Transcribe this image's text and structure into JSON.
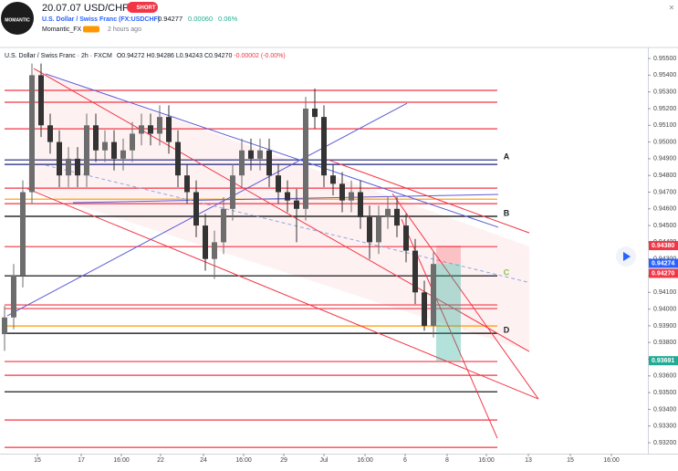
{
  "header": {
    "logo": "MOMANTIC",
    "title": "20.07.07 USD/CHF",
    "badge": "SHORT",
    "symbol": "U.S. Dollar / Swiss Franc (FX:USDCHF)",
    "price": "0.94277",
    "change": "0.00060",
    "change_pct": "0.06%",
    "author": "Momantic_FX",
    "time": "2 hours ago"
  },
  "chart_data": {
    "type": "candlestick",
    "legend": {
      "name": "U.S. Dollar / Swiss Franc · 2h · FXCM",
      "open": "O0.94272",
      "high": "H0.94286",
      "low": "L0.94243",
      "close": "C0.94270",
      "change": "-0.00002 (-0.00%)"
    },
    "up_color": "#6d6d6d",
    "down_color": "#333333",
    "x": [
      0,
      1,
      2,
      3,
      4,
      5,
      6,
      7,
      8,
      9,
      10,
      11,
      12,
      13,
      14,
      15,
      16,
      17,
      18,
      19,
      20,
      21,
      22,
      23,
      24,
      25,
      26,
      27,
      28,
      29,
      30,
      31,
      32,
      33,
      34,
      35,
      36,
      37,
      38,
      39,
      40,
      41,
      42,
      43,
      44,
      45,
      46,
      47
    ],
    "open": [
      0.9385,
      0.9395,
      0.942,
      0.947,
      0.954,
      0.951,
      0.95,
      0.948,
      0.949,
      0.948,
      0.951,
      0.9495,
      0.95,
      0.949,
      0.9495,
      0.9505,
      0.951,
      0.9505,
      0.9515,
      0.95,
      0.948,
      0.947,
      0.945,
      0.943,
      0.944,
      0.946,
      0.948,
      0.9495,
      0.949,
      0.9495,
      0.948,
      0.947,
      0.9465,
      0.946,
      0.952,
      0.9515,
      0.948,
      0.9475,
      0.9465,
      0.947,
      0.9455,
      0.944,
      0.9455,
      0.946,
      0.945,
      0.9435,
      0.941,
      0.939
    ],
    "high": [
      0.9402,
      0.9427,
      0.9477,
      0.9547,
      0.9547,
      0.9517,
      0.9507,
      0.9497,
      0.9497,
      0.9517,
      0.9517,
      0.9507,
      0.9507,
      0.9502,
      0.9512,
      0.9517,
      0.9517,
      0.9522,
      0.9522,
      0.9507,
      0.9487,
      0.9477,
      0.9457,
      0.9447,
      0.9467,
      0.9487,
      0.9502,
      0.9502,
      0.9502,
      0.9502,
      0.9487,
      0.9477,
      0.9472,
      0.9527,
      0.9532,
      0.9522,
      0.9487,
      0.9482,
      0.9477,
      0.9477,
      0.9462,
      0.9462,
      0.9467,
      0.9467,
      0.9457,
      0.9442,
      0.9417,
      0.9434
    ],
    "low": [
      0.9375,
      0.9388,
      0.9413,
      0.9463,
      0.9503,
      0.9493,
      0.9473,
      0.9473,
      0.9473,
      0.9473,
      0.9488,
      0.9488,
      0.9483,
      0.9483,
      0.9488,
      0.9498,
      0.9498,
      0.9498,
      0.9493,
      0.9473,
      0.9463,
      0.9443,
      0.9423,
      0.9418,
      0.9433,
      0.9453,
      0.9473,
      0.9483,
      0.9483,
      0.9473,
      0.9463,
      0.9458,
      0.944,
      0.9453,
      0.9508,
      0.9473,
      0.9468,
      0.9458,
      0.9458,
      0.9448,
      0.943,
      0.9433,
      0.9448,
      0.9443,
      0.9428,
      0.9403,
      0.9387,
      0.9383
    ],
    "close": [
      0.9395,
      0.942,
      0.947,
      0.954,
      0.951,
      0.95,
      0.948,
      0.949,
      0.948,
      0.951,
      0.9495,
      0.95,
      0.949,
      0.9495,
      0.9505,
      0.951,
      0.9505,
      0.9515,
      0.95,
      0.948,
      0.947,
      0.945,
      0.943,
      0.944,
      0.946,
      0.948,
      0.9495,
      0.949,
      0.9495,
      0.948,
      0.947,
      0.9465,
      0.946,
      0.952,
      0.9515,
      0.948,
      0.9475,
      0.9465,
      0.947,
      0.9455,
      0.944,
      0.9455,
      0.946,
      0.945,
      0.9435,
      0.941,
      0.939,
      0.9427
    ],
    "xlim": [
      -0.5,
      70.5
    ],
    "xticks": [
      {
        "value": 3.6,
        "label": "15"
      },
      {
        "value": 8.4,
        "label": "17"
      },
      {
        "value": 12.8,
        "label": "16:00"
      },
      {
        "value": 17.1,
        "label": "22"
      },
      {
        "value": 21.8,
        "label": "24"
      },
      {
        "value": 26.2,
        "label": "16:00"
      },
      {
        "value": 30.6,
        "label": "29"
      },
      {
        "value": 35,
        "label": "Jul"
      },
      {
        "value": 39.5,
        "label": "16:00"
      },
      {
        "value": 43.9,
        "label": "6"
      },
      {
        "value": 48.5,
        "label": "8"
      },
      {
        "value": 52.8,
        "label": "16:00"
      },
      {
        "value": 57.4,
        "label": "13"
      },
      {
        "value": 62,
        "label": "15"
      },
      {
        "value": 66.5,
        "label": "16:00"
      }
    ],
    "ylim": [
      0.93151,
      0.95566
    ],
    "yticks": [
      {
        "value": 0.932,
        "label": "0.93200"
      },
      {
        "value": 0.933,
        "label": "0.93300"
      },
      {
        "value": 0.934,
        "label": "0.93400"
      },
      {
        "value": 0.935,
        "label": "0.93500"
      },
      {
        "value": 0.936,
        "label": "0.93600"
      },
      {
        "value": 0.937,
        "label": "0.93700"
      },
      {
        "value": 0.938,
        "label": "0.93800"
      },
      {
        "value": 0.939,
        "label": "0.93900"
      },
      {
        "value": 0.94,
        "label": "0.94000"
      },
      {
        "value": 0.941,
        "label": "0.94100"
      },
      {
        "value": 0.942,
        "label": "0.94200"
      },
      {
        "value": 0.943,
        "label": "0.94300"
      },
      {
        "value": 0.944,
        "label": "0.94400"
      },
      {
        "value": 0.945,
        "label": "0.94500"
      },
      {
        "value": 0.946,
        "label": "0.94600"
      },
      {
        "value": 0.947,
        "label": "0.94700"
      },
      {
        "value": 0.948,
        "label": "0.94800"
      },
      {
        "value": 0.949,
        "label": "0.94900"
      },
      {
        "value": 0.95,
        "label": "0.95000"
      },
      {
        "value": 0.951,
        "label": "0.95100"
      },
      {
        "value": 0.952,
        "label": "0.95200"
      },
      {
        "value": 0.953,
        "label": "0.95300"
      },
      {
        "value": 0.954,
        "label": "0.95400"
      },
      {
        "value": 0.955,
        "label": "0.95500"
      }
    ],
    "levels": [
      {
        "value": 0.95309,
        "color": "#f23645"
      },
      {
        "value": 0.95238,
        "color": "#f23645"
      },
      {
        "value": 0.95079,
        "color": "#f23645"
      },
      {
        "value": 0.94893,
        "color": "#1a237e",
        "label": "A",
        "label_color": "#222222"
      },
      {
        "value": 0.94866,
        "color": "#1a237e"
      },
      {
        "value": 0.94724,
        "color": "#f23645"
      },
      {
        "value": 0.94658,
        "color": "#ff9800"
      },
      {
        "value": 0.94631,
        "color": "#f23645"
      },
      {
        "value": 0.94555,
        "color": "#000000",
        "label": "B",
        "label_color": "#222222"
      },
      {
        "value": 0.94374,
        "color": "#f23645"
      },
      {
        "value": 0.94199,
        "color": "#000000",
        "label": "C",
        "label_color": "#8bc34a"
      },
      {
        "value": 0.94025,
        "color": "#f23645"
      },
      {
        "value": 0.94003,
        "color": "#f23645"
      },
      {
        "value": 0.93899,
        "color": "#ff9800"
      },
      {
        "value": 0.93855,
        "color": "#000000",
        "label": "D",
        "label_color": "#222222"
      },
      {
        "value": 0.93686,
        "color": "#f23645"
      },
      {
        "value": 0.93604,
        "color": "#f23645"
      },
      {
        "value": 0.93505,
        "color": "#000000"
      },
      {
        "value": 0.93336,
        "color": "#f23645"
      },
      {
        "value": 0.93172,
        "color": "#f23645"
      }
    ],
    "trendlines": [
      {
        "x": [
          0.3,
          44.1
        ],
        "y": [
          0.9396,
          0.95232
        ],
        "color": "#5b5bd6"
      },
      {
        "x": [
          4.5,
          54.1
        ],
        "y": [
          0.95408,
          0.9449
        ],
        "color": "#5b5bd6"
      },
      {
        "x": [
          7.5,
          54.1
        ],
        "y": [
          0.94637,
          0.94686
        ],
        "color": "#5b5bd6"
      },
      {
        "x": [
          4.5,
          57.3
        ],
        "y": [
          0.94861,
          0.94162
        ],
        "color": "#8fa8e0",
        "dashed": true
      },
      {
        "x": [
          3.2,
          57.5
        ],
        "y": [
          0.9544,
          0.93746
        ],
        "color": "#f23645"
      },
      {
        "x": [
          2.5,
          58.5
        ],
        "y": [
          0.9472,
          0.93462
        ],
        "color": "#f23645"
      },
      {
        "x": [
          42.5,
          58.5
        ],
        "y": [
          0.94691,
          0.93462
        ],
        "color": "#f23645"
      },
      {
        "x": [
          43.5,
          54
        ],
        "y": [
          0.94538,
          0.93227
        ],
        "color": "#f23645"
      },
      {
        "x": [
          35.5,
          57.5
        ],
        "y": [
          0.94893,
          0.94456
        ],
        "color": "#f23645"
      }
    ],
    "position": {
      "x": [
        47.3,
        50
      ],
      "entry": 0.9427,
      "stop": 0.9438,
      "target": 0.93691
    },
    "price_labels": [
      {
        "value": 0.9438,
        "label": "0.94380",
        "color": "#f23645"
      },
      {
        "value": 0.94274,
        "label": "0.94274",
        "color": "#2962ff"
      },
      {
        "value": 0.9427,
        "label": "0.94270",
        "color": "#f23645"
      },
      {
        "value": 0.93691,
        "label": "0.93691",
        "color": "#22ab94"
      }
    ]
  }
}
